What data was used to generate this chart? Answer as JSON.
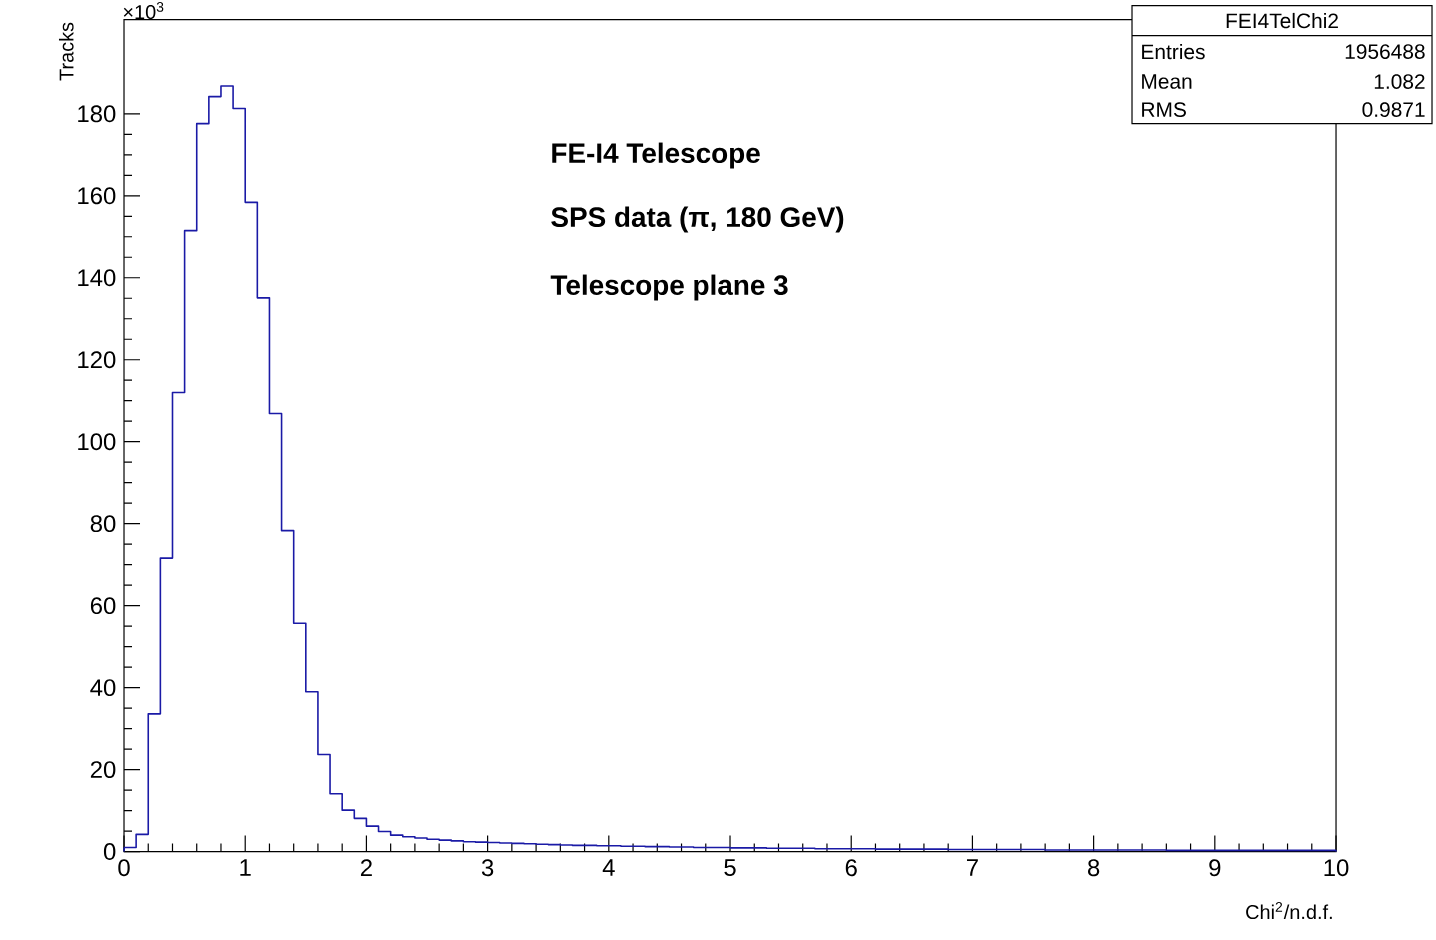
{
  "chart_data": {
    "type": "histogram",
    "xlabel": "Chi$^{2}$/n.d.f.",
    "ylabel": "Tracks",
    "bins": [
      0,
      0.1,
      0.2,
      0.3,
      0.4,
      0.5,
      0.6,
      0.7,
      0.8,
      0.9,
      1,
      1.1,
      1.2,
      1.3,
      1.4,
      1.5,
      1.6,
      1.7,
      1.8,
      1.9,
      2,
      2.1,
      2.2,
      2.3,
      2.4,
      2.5,
      2.6,
      2.7,
      2.8,
      2.9,
      3,
      3.1,
      3.2,
      3.3,
      3.4,
      3.5,
      3.6,
      3.7,
      3.8,
      3.9,
      4,
      4.1,
      4.2,
      4.3,
      4.4,
      4.5,
      4.6,
      4.7,
      4.8,
      4.9,
      5,
      5.1,
      5.2,
      5.3,
      5.4,
      5.5,
      5.6,
      5.7,
      5.8,
      5.9,
      6,
      6.1,
      6.2,
      6.3,
      6.4,
      6.5,
      6.6,
      6.7,
      6.8,
      6.9,
      7,
      7.1,
      7.2,
      7.3,
      7.4,
      7.5,
      7.6,
      7.7,
      7.8,
      7.9,
      8,
      8.1,
      8.2,
      8.3,
      8.4,
      8.5,
      8.6,
      8.7,
      8.8,
      8.9,
      9,
      9.1,
      9.2,
      9.3,
      9.4,
      9.5,
      9.6,
      9.7,
      9.8,
      9.9,
      10
    ],
    "values": [
      1,
      4.2,
      33.6,
      71.6,
      112,
      151.5,
      177.6,
      184.2,
      186.8,
      181.3,
      158.4,
      135.1,
      106.9,
      78.3,
      55.7,
      39,
      23.7,
      14.1,
      10.1,
      8.1,
      6.2,
      4.9,
      4,
      3.6,
      3.3,
      3.0,
      2.8,
      2.6,
      2.4,
      2.3,
      2.2,
      2.1,
      2.0,
      1.9,
      1.8,
      1.7,
      1.6,
      1.5,
      1.5,
      1.4,
      1.4,
      1.3,
      1.3,
      1.2,
      1.2,
      1.1,
      1.1,
      1.0,
      1.0,
      1.0,
      0.9,
      0.9,
      0.9,
      0.8,
      0.8,
      0.8,
      0.8,
      0.7,
      0.7,
      0.7,
      0.7,
      0.7,
      0.6,
      0.6,
      0.6,
      0.6,
      0.6,
      0.6,
      0.5,
      0.5,
      0.5,
      0.5,
      0.5,
      0.5,
      0.5,
      0.5,
      0.4,
      0.4,
      0.4,
      0.4,
      0.4,
      0.4,
      0.4,
      0.4,
      0.4,
      0.4,
      0.3,
      0.3,
      0.3,
      0.3,
      0.3,
      0.3,
      0.3,
      0.3,
      0.3,
      0.3,
      0.3,
      0.3,
      0.3,
      0.3
    ],
    "color": "#1a1aa6",
    "xlim": [
      0,
      10
    ],
    "ylim": [
      0,
      203
    ],
    "xticks": [
      0,
      1,
      2,
      3,
      4,
      5,
      6,
      7,
      8,
      9,
      10
    ],
    "yticks": [
      0,
      20,
      40,
      60,
      80,
      100,
      120,
      140,
      160,
      180
    ],
    "grid": false,
    "annotations": [
      "FE-I4 Telescope",
      "SPS data (π, 180 GeV)",
      "Telescope plane 3",
      "×10$^{3}$",
      "FEI4TelChi2",
      "Entries",
      "1956488",
      "Mean",
      "1.082",
      "RMS",
      "0.9871"
    ]
  }
}
